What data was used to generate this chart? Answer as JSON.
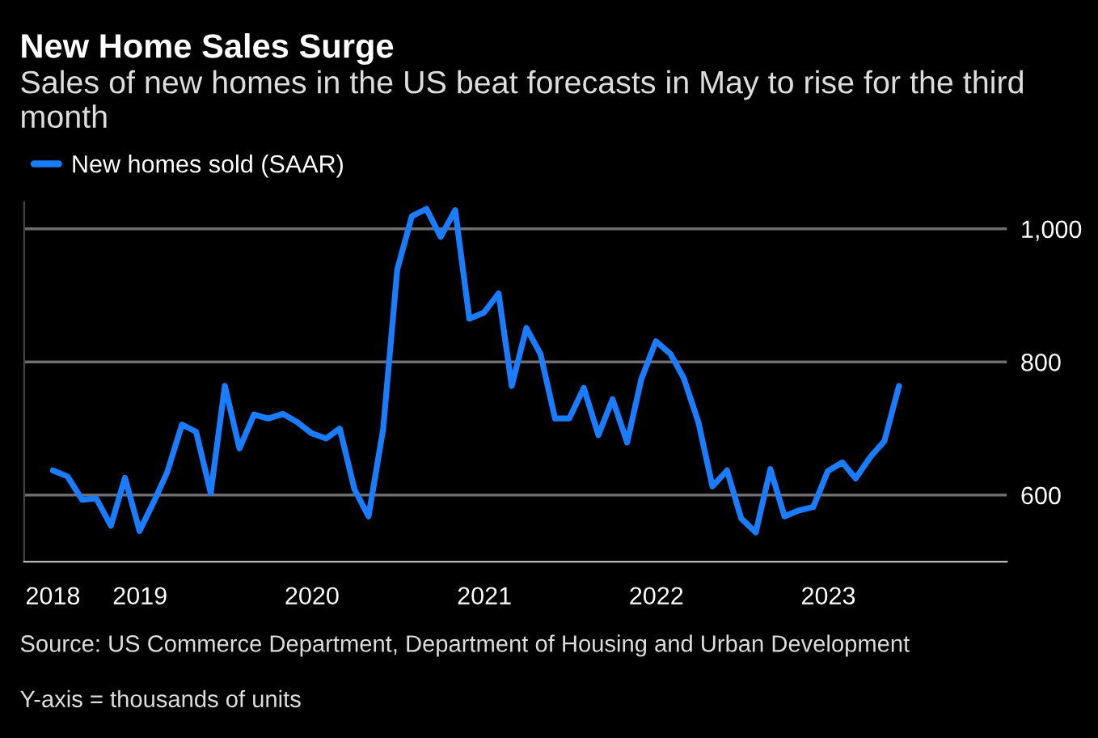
{
  "chart_data": {
    "type": "line",
    "title": "New Home Sales Surge",
    "subtitle": "Sales of new homes in the US beat forecasts in May to rise for the third month",
    "x": [
      "2018-06-30",
      "2018-07-31",
      "2018-08-31",
      "2018-09-30",
      "2018-10-31",
      "2018-11-30",
      "2018-12-31",
      "2019-01-31",
      "2019-02-28",
      "2019-03-31",
      "2019-04-30",
      "2019-05-31",
      "2019-06-30",
      "2019-07-31",
      "2019-08-31",
      "2019-09-30",
      "2019-10-31",
      "2019-11-30",
      "2019-12-31",
      "2020-01-31",
      "2020-02-29",
      "2020-03-31",
      "2020-04-30",
      "2020-05-31",
      "2020-06-30",
      "2020-07-31",
      "2020-08-31",
      "2020-09-30",
      "2020-10-31",
      "2020-11-30",
      "2020-12-31",
      "2021-01-31",
      "2021-02-28",
      "2021-03-31",
      "2021-04-30",
      "2021-05-31",
      "2021-06-30",
      "2021-07-31",
      "2021-08-31",
      "2021-09-30",
      "2021-10-31",
      "2021-11-30",
      "2021-12-31",
      "2022-01-31",
      "2022-02-28",
      "2022-03-31",
      "2022-04-30",
      "2022-05-31",
      "2022-06-30",
      "2022-07-31",
      "2022-08-31",
      "2022-09-30",
      "2022-10-31",
      "2022-11-30",
      "2022-12-31",
      "2023-01-31",
      "2023-02-28",
      "2023-03-31",
      "2023-04-30",
      "2023-05-31"
    ],
    "series": [
      {
        "name": "New homes sold (SAAR)",
        "color": "#1a7cff",
        "values": [
          637,
          628,
          593,
          595,
          554,
          626,
          546,
          591,
          635,
          706,
          695,
          603,
          764,
          670,
          721,
          715,
          722,
          710,
          693,
          685,
          700,
          609,
          568,
          699,
          939,
          1019,
          1030,
          988,
          1028,
          865,
          874,
          903,
          764,
          851,
          812,
          715,
          715,
          761,
          690,
          744,
          679,
          774,
          831,
          812,
          776,
          710,
          613,
          637,
          565,
          544,
          639,
          568,
          577,
          582,
          636,
          649,
          625,
          657,
          681,
          764
        ]
      }
    ],
    "xlim": [
      "2018-04-30",
      "2024-01-15"
    ],
    "xticks": [
      {
        "value": "2018-06-30",
        "label": "2018"
      },
      {
        "value": "2019-01-01",
        "label": "2019"
      },
      {
        "value": "2020-01-01",
        "label": "2020"
      },
      {
        "value": "2021-01-01",
        "label": "2021"
      },
      {
        "value": "2022-01-01",
        "label": "2022"
      },
      {
        "value": "2023-01-01",
        "label": "2023"
      }
    ],
    "ylim": [
      500,
      1040
    ],
    "yticks": [
      600,
      800,
      {
        "value": 1000,
        "label": "1,000"
      }
    ],
    "grid": "y",
    "legend": "top left",
    "line_style": "solid",
    "marker": "none",
    "annotations": [
      "Source: US Commerce Department, Department of Housing and Urban Development",
      "Y-axis = thousands of units"
    ]
  }
}
